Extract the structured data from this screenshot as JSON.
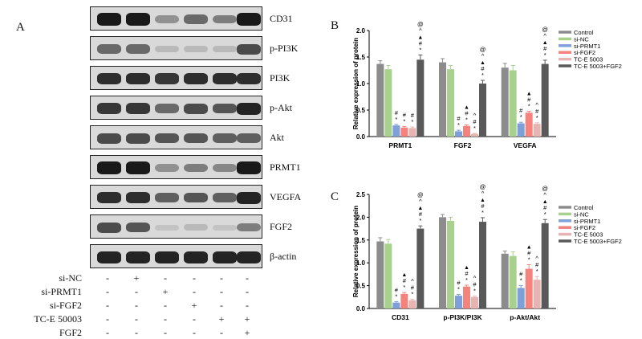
{
  "panel_labels": {
    "a": "A",
    "b": "B",
    "c": "C"
  },
  "blots": {
    "rows": [
      {
        "label": "CD31",
        "intensity": [
          0.95,
          0.95,
          0.35,
          0.55,
          0.45,
          0.95
        ]
      },
      {
        "label": "p-PI3K",
        "intensity": [
          0.55,
          0.55,
          0.15,
          0.15,
          0.15,
          0.7
        ]
      },
      {
        "label": "PI3K",
        "intensity": [
          0.85,
          0.85,
          0.8,
          0.85,
          0.85,
          0.85
        ]
      },
      {
        "label": "p-Akt",
        "intensity": [
          0.8,
          0.8,
          0.55,
          0.7,
          0.65,
          0.9
        ]
      },
      {
        "label": "Akt",
        "intensity": [
          0.7,
          0.7,
          0.65,
          0.65,
          0.6,
          0.6
        ]
      },
      {
        "label": "PRMT1",
        "intensity": [
          0.95,
          0.95,
          0.35,
          0.45,
          0.4,
          0.95
        ]
      },
      {
        "label": "VEGFA",
        "intensity": [
          0.85,
          0.85,
          0.6,
          0.65,
          0.6,
          0.9
        ]
      },
      {
        "label": "FGF2",
        "intensity": [
          0.7,
          0.65,
          0.1,
          0.15,
          0.1,
          0.45
        ]
      },
      {
        "label": "β-actin",
        "intensity": [
          0.9,
          0.9,
          0.9,
          0.9,
          0.9,
          0.9
        ]
      }
    ],
    "treatments": [
      {
        "label": "si-NC",
        "signs": [
          "-",
          "+",
          "-",
          "-",
          "-",
          "-"
        ]
      },
      {
        "label": "si-PRMT1",
        "signs": [
          "-",
          "-",
          "+",
          "-",
          "-",
          "-"
        ]
      },
      {
        "label": "si-FGF2",
        "signs": [
          "-",
          "-",
          "-",
          "+",
          "-",
          "-"
        ]
      },
      {
        "label": "TC-E 50003",
        "signs": [
          "-",
          "-",
          "-",
          "-",
          "+",
          "+"
        ]
      },
      {
        "label": "FGF2",
        "signs": [
          "-",
          "-",
          "-",
          "-",
          "-",
          "+"
        ]
      }
    ]
  },
  "chart_data": [
    {
      "type": "bar",
      "panel": "B",
      "ylabel": "Relative expression of protein",
      "ylim": [
        0,
        2.0
      ],
      "yticks": [
        "0.0",
        "0.5",
        "1.0",
        "1.5",
        "2.0"
      ],
      "categories": [
        "PRMT1",
        "FGF2",
        "VEGFA"
      ],
      "series": [
        {
          "name": "Control",
          "color": "#8c8c8c",
          "values": [
            1.37,
            1.4,
            1.3
          ],
          "errors": [
            0.06,
            0.07,
            0.08
          ]
        },
        {
          "name": "si-NC",
          "color": "#a9d18e",
          "values": [
            1.27,
            1.27,
            1.25
          ],
          "errors": [
            0.07,
            0.07,
            0.09
          ]
        },
        {
          "name": "si-PRMT1",
          "color": "#7f9fd9",
          "values": [
            0.21,
            0.1,
            0.25
          ],
          "errors": [
            0.02,
            0.02,
            0.02
          ]
        },
        {
          "name": "si-FGF2",
          "color": "#f4837d",
          "values": [
            0.17,
            0.2,
            0.45
          ],
          "errors": [
            0.02,
            0.02,
            0.03
          ]
        },
        {
          "name": "TC-E 5003",
          "color": "#e7b5b1",
          "values": [
            0.16,
            0.05,
            0.24
          ],
          "errors": [
            0.02,
            0.01,
            0.02
          ]
        },
        {
          "name": "TC-E 5003+FGF2",
          "color": "#595959",
          "values": [
            1.45,
            1.0,
            1.37
          ],
          "errors": [
            0.09,
            0.06,
            0.07
          ]
        }
      ],
      "annotations": [
        {
          "category": 0,
          "series": 2,
          "marks": [
            "*",
            "#"
          ]
        },
        {
          "category": 0,
          "series": 3,
          "marks": [
            "*",
            "#"
          ]
        },
        {
          "category": 0,
          "series": 4,
          "marks": [
            "*",
            "#"
          ]
        },
        {
          "category": 0,
          "series": 5,
          "marks": [
            "*",
            "#",
            "▲",
            "^",
            "@"
          ]
        },
        {
          "category": 1,
          "series": 2,
          "marks": [
            "*",
            "#"
          ]
        },
        {
          "category": 1,
          "series": 3,
          "marks": [
            "*",
            "#",
            "▲"
          ]
        },
        {
          "category": 1,
          "series": 4,
          "marks": [
            "*",
            "#",
            "^"
          ]
        },
        {
          "category": 1,
          "series": 5,
          "marks": [
            "*",
            "#",
            "▲",
            "^",
            "@"
          ]
        },
        {
          "category": 2,
          "series": 2,
          "marks": [
            "*",
            "#"
          ]
        },
        {
          "category": 2,
          "series": 3,
          "marks": [
            "*",
            "#",
            "▲"
          ]
        },
        {
          "category": 2,
          "series": 4,
          "marks": [
            "*",
            "#",
            "^"
          ]
        },
        {
          "category": 2,
          "series": 5,
          "marks": [
            "*",
            "#",
            "▲",
            "^",
            "@"
          ]
        }
      ]
    },
    {
      "type": "bar",
      "panel": "C",
      "ylabel": "Relative expression of protein",
      "ylim": [
        0,
        2.5
      ],
      "yticks": [
        "0.0",
        "0.5",
        "1.0",
        "1.5",
        "2.0",
        "2.5"
      ],
      "categories": [
        "CD31",
        "p-PI3K/PI3K",
        "p-Akt/Akt"
      ],
      "series": [
        {
          "name": "Control",
          "color": "#8c8c8c",
          "values": [
            1.47,
            2.0,
            1.2
          ],
          "errors": [
            0.08,
            0.06,
            0.06
          ]
        },
        {
          "name": "si-NC",
          "color": "#a9d18e",
          "values": [
            1.42,
            1.92,
            1.15
          ],
          "errors": [
            0.09,
            0.08,
            0.09
          ]
        },
        {
          "name": "si-PRMT1",
          "color": "#7f9fd9",
          "values": [
            0.13,
            0.28,
            0.45
          ],
          "errors": [
            0.02,
            0.03,
            0.05
          ]
        },
        {
          "name": "si-FGF2",
          "color": "#f4837d",
          "values": [
            0.32,
            0.48,
            0.87
          ],
          "errors": [
            0.03,
            0.03,
            0.09
          ]
        },
        {
          "name": "TC-E 5003",
          "color": "#e7b5b1",
          "values": [
            0.18,
            0.25,
            0.63
          ],
          "errors": [
            0.02,
            0.02,
            0.07
          ]
        },
        {
          "name": "TC-E 5003+FGF2",
          "color": "#595959",
          "values": [
            1.75,
            1.9,
            1.87
          ],
          "errors": [
            0.06,
            0.09,
            0.08
          ]
        }
      ],
      "annotations": [
        {
          "category": 0,
          "series": 2,
          "marks": [
            "*",
            "#"
          ]
        },
        {
          "category": 0,
          "series": 3,
          "marks": [
            "*",
            "#",
            "▲"
          ]
        },
        {
          "category": 0,
          "series": 4,
          "marks": [
            "*",
            "#",
            "^"
          ]
        },
        {
          "category": 0,
          "series": 5,
          "marks": [
            "*",
            "#",
            "▲",
            "^",
            "@"
          ]
        },
        {
          "category": 1,
          "series": 2,
          "marks": [
            "*",
            "#"
          ]
        },
        {
          "category": 1,
          "series": 3,
          "marks": [
            "*",
            "#",
            "▲"
          ]
        },
        {
          "category": 1,
          "series": 4,
          "marks": [
            "*",
            "#",
            "^"
          ]
        },
        {
          "category": 1,
          "series": 5,
          "marks": [
            "*",
            "#",
            "▲",
            "^",
            "@"
          ]
        },
        {
          "category": 2,
          "series": 2,
          "marks": [
            "*",
            "#"
          ]
        },
        {
          "category": 2,
          "series": 3,
          "marks": [
            "*",
            "#",
            "▲"
          ]
        },
        {
          "category": 2,
          "series": 4,
          "marks": [
            "*",
            "#",
            "^"
          ]
        },
        {
          "category": 2,
          "series": 5,
          "marks": [
            "*",
            "#",
            "▲",
            "^",
            "@"
          ]
        }
      ]
    }
  ]
}
